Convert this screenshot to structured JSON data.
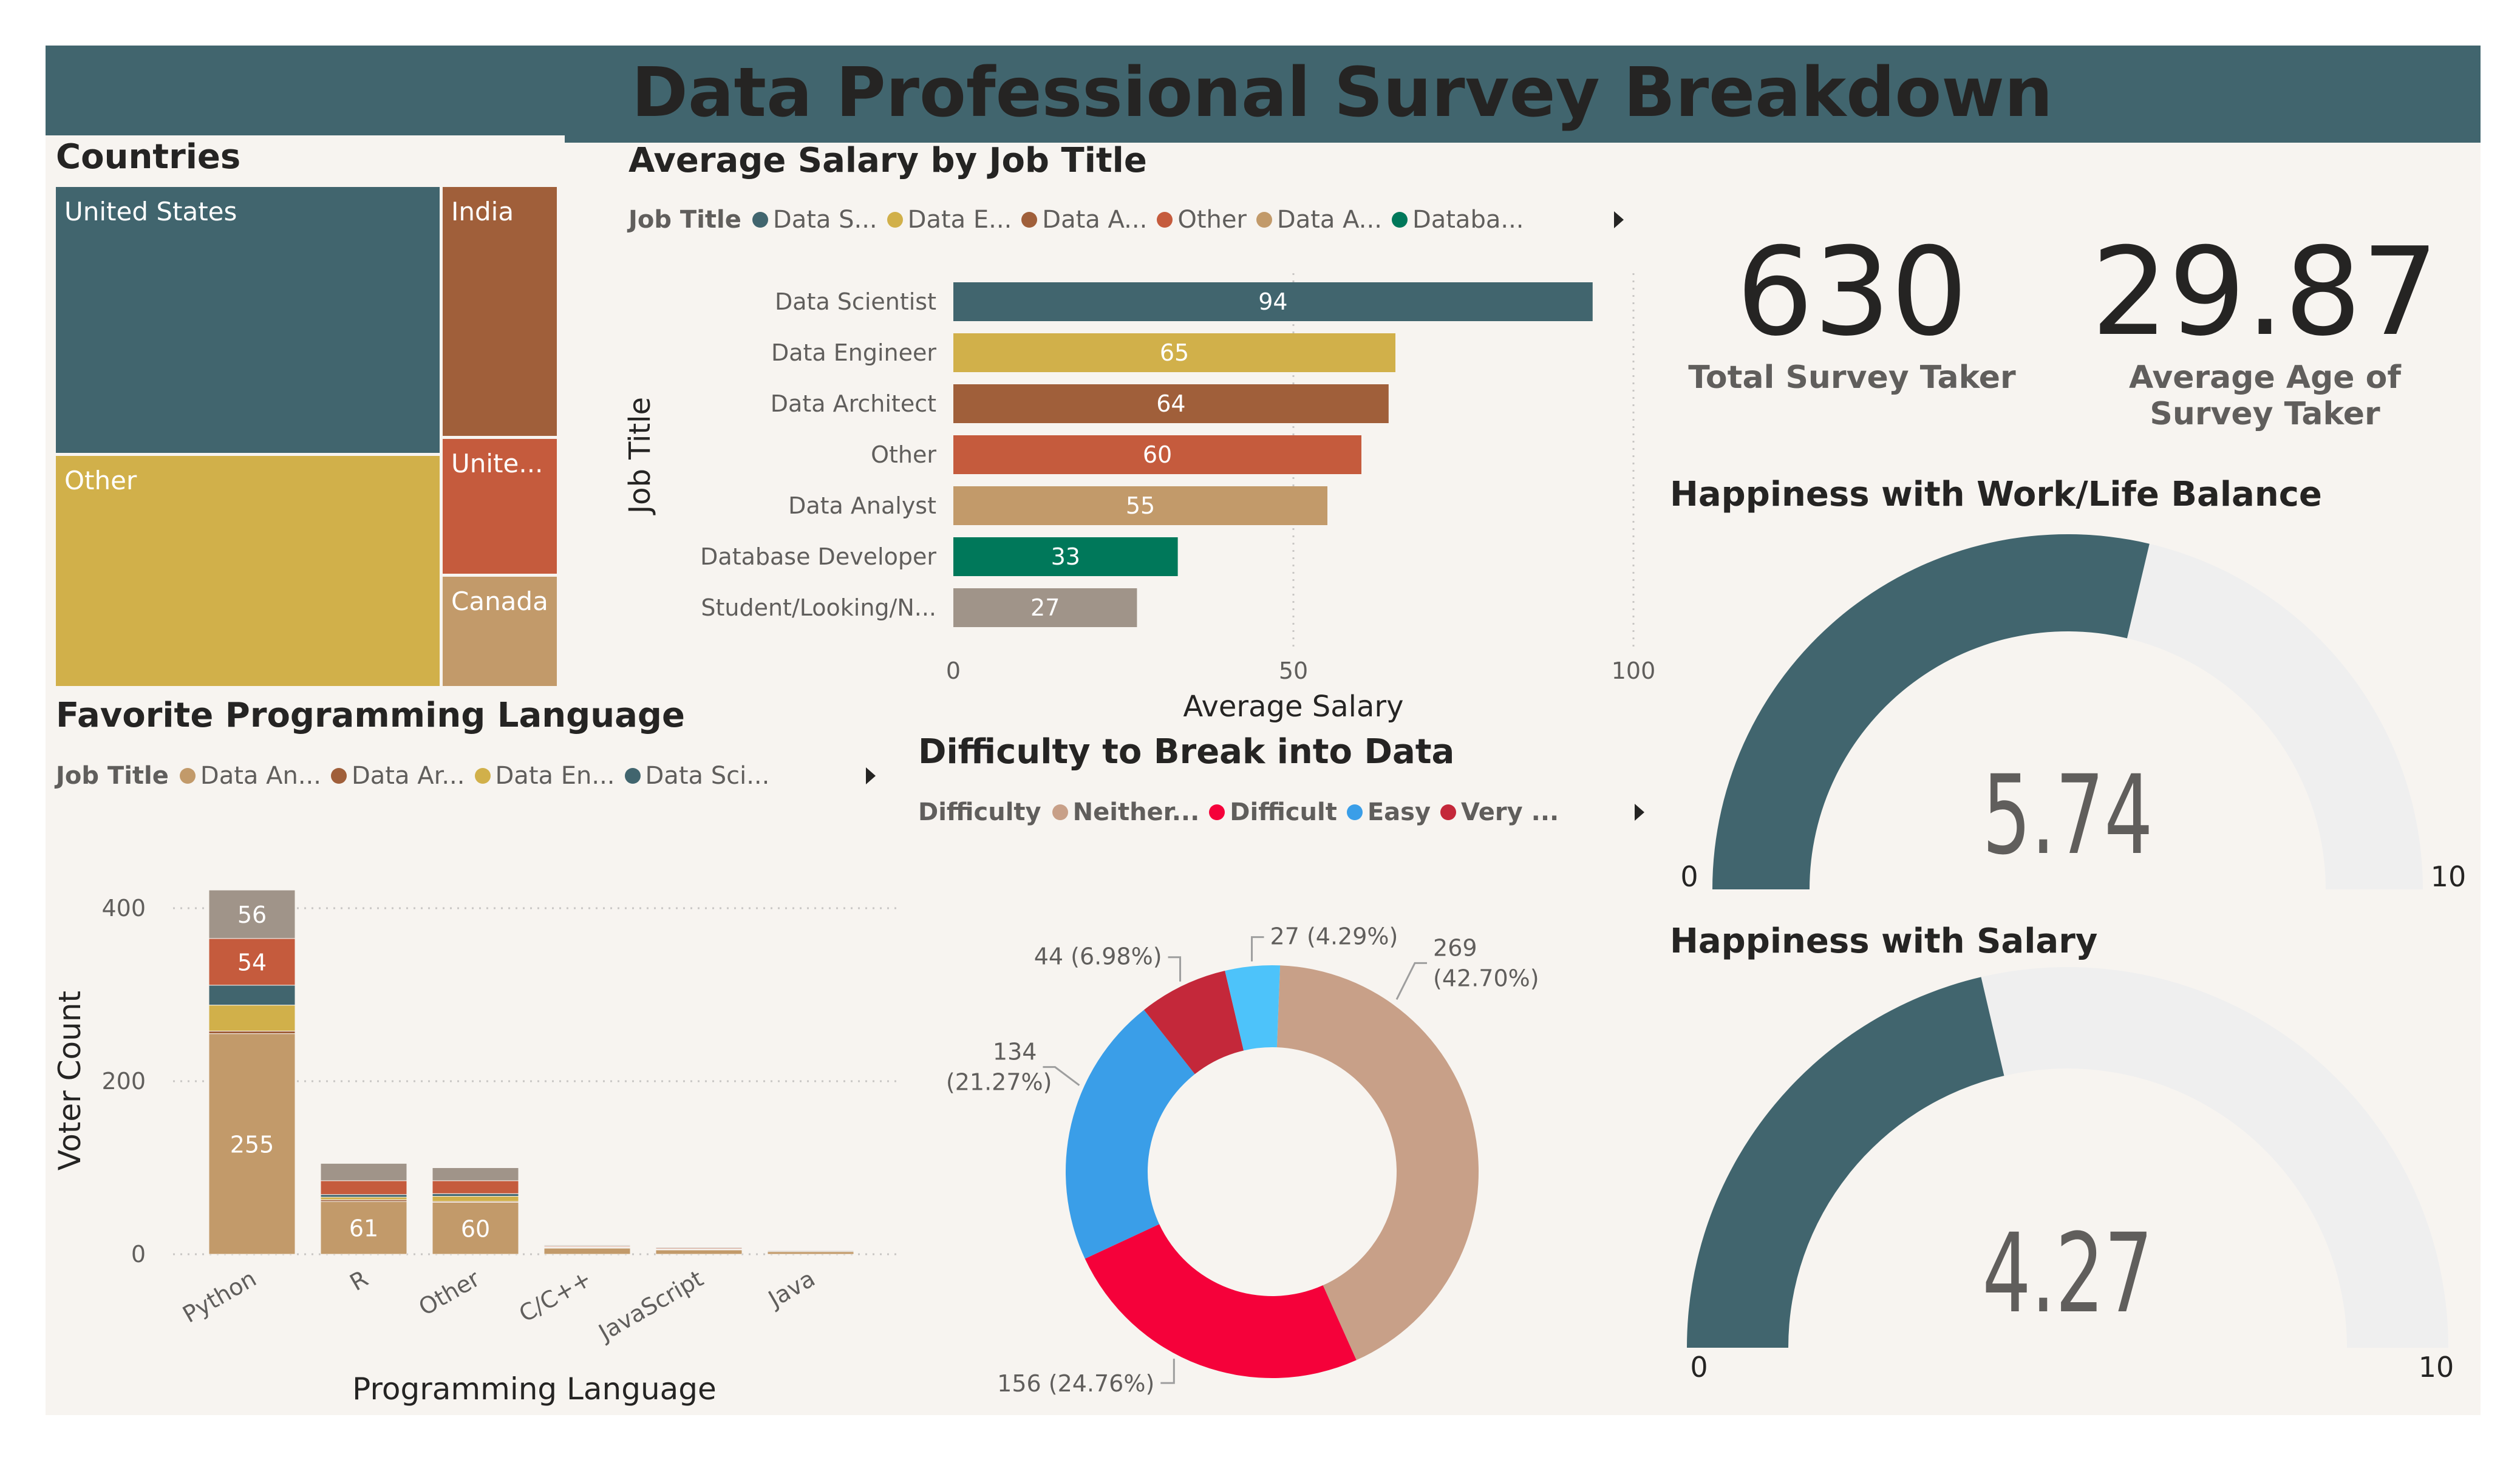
{
  "page": {
    "title": "Data Professional Survey Breakdown",
    "colors": {
      "header": "#41656E",
      "panel": "#F7F4F0",
      "text": "#252423",
      "muted": "#605E5C",
      "gauge_bg": "#EFEFEF"
    }
  },
  "treemap": {
    "title": "Countries",
    "tiles": [
      {
        "label": "United States",
        "color": "#41656E"
      },
      {
        "label": "Other",
        "color": "#D1B04A"
      },
      {
        "label": "India",
        "color": "#A05F3A"
      },
      {
        "label": "Unite...",
        "color": "#C55B3D"
      },
      {
        "label": "Canada",
        "color": "#C29A6A"
      }
    ]
  },
  "salary_chart": {
    "title": "Average Salary by Job Title",
    "legend_title": "Job Title",
    "legend": [
      {
        "label": "Data S...",
        "color": "#41656E"
      },
      {
        "label": "Data E...",
        "color": "#D1B04A"
      },
      {
        "label": "Data A...",
        "color": "#A05F3A"
      },
      {
        "label": "Other",
        "color": "#C55B3D"
      },
      {
        "label": "Data A...",
        "color": "#C29A6A"
      },
      {
        "label": "Databa...",
        "color": "#00785A"
      }
    ]
  },
  "kpis": [
    {
      "value": "630",
      "label": "Total Survey Taker"
    },
    {
      "value": "29.87",
      "label_line1": "Average Age of",
      "label_line2": "Survey Taker"
    }
  ],
  "gauges": [
    {
      "title": "Happiness with Work/Life Balance",
      "value": 5.74,
      "value_text": "5.74",
      "min": 0,
      "max": 10,
      "min_label": "0",
      "max_label": "10"
    },
    {
      "title": "Happiness with Salary",
      "value": 4.27,
      "value_text": "4.27",
      "min": 0,
      "max": 10,
      "min_label": "0",
      "max_label": "10"
    }
  ],
  "language_chart": {
    "title": "Favorite Programming Language",
    "legend_title": "Job Title",
    "legend": [
      {
        "label": "Data An...",
        "color": "#C29A6A"
      },
      {
        "label": "Data Ar...",
        "color": "#A05F3A"
      },
      {
        "label": "Data En...",
        "color": "#D1B04A"
      },
      {
        "label": "Data Sci...",
        "color": "#41656E"
      }
    ]
  },
  "donut_chart": {
    "title": "Difficulty to Break into Data",
    "legend_title": "Difficulty",
    "legend": [
      {
        "label": "Neither...",
        "color": "#C8A088"
      },
      {
        "label": "Difficult",
        "color": "#F5013A"
      },
      {
        "label": "Easy",
        "color": "#3A9EE8"
      },
      {
        "label": "Very ...",
        "color": "#C4283A"
      }
    ]
  },
  "chart_data": [
    {
      "type": "bar",
      "orientation": "horizontal",
      "title": "Average Salary by Job Title",
      "categories": [
        "Data Scientist",
        "Data Engineer",
        "Data Architect",
        "Other",
        "Data Analyst",
        "Database Developer",
        "Student/Looking/N..."
      ],
      "values": [
        94,
        65,
        64,
        60,
        55,
        33,
        27
      ],
      "colors": [
        "#41656E",
        "#D1B04A",
        "#A05F3A",
        "#C55B3D",
        "#C29A6A",
        "#00785A",
        "#A09489"
      ],
      "xlabel": "Average Salary",
      "ylabel": "Job Title",
      "xlim": [
        0,
        100
      ],
      "xticks": [
        0,
        50,
        100
      ],
      "grid": true
    },
    {
      "type": "bar",
      "stacked": true,
      "title": "Favorite Programming Language",
      "categories": [
        "Python",
        "R",
        "Other",
        "C/C++",
        "JavaScript",
        "Java"
      ],
      "series": [
        {
          "name": "Data An...",
          "color": "#C29A6A",
          "values": [
            255,
            61,
            60,
            7,
            5,
            3
          ]
        },
        {
          "name": "Data Ar...",
          "color": "#A05F3A",
          "values": [
            3,
            2,
            1,
            0.5,
            0.5,
            0
          ]
        },
        {
          "name": "Data En...",
          "color": "#D1B04A",
          "values": [
            30,
            3,
            6,
            0.5,
            0.5,
            0
          ]
        },
        {
          "name": "Data Sci...",
          "color": "#41656E",
          "values": [
            23,
            3,
            3,
            0.5,
            0,
            0
          ]
        },
        {
          "color": "#C55B3D",
          "values": [
            54,
            16,
            15,
            1,
            1,
            0
          ]
        },
        {
          "color": "#A09489",
          "values": [
            56,
            20,
            15,
            1,
            1,
            1
          ]
        }
      ],
      "data_labels": [
        {
          "category": "Python",
          "series": 0,
          "text": "255"
        },
        {
          "category": "Python",
          "series": 4,
          "text": "54"
        },
        {
          "category": "Python",
          "series": 5,
          "text": "56"
        },
        {
          "category": "R",
          "series": 0,
          "text": "61"
        },
        {
          "category": "Other",
          "series": 0,
          "text": "60"
        }
      ],
      "xlabel": "Programming Language",
      "ylabel": "Voter Count",
      "ylim": [
        0,
        440
      ],
      "yticks": [
        0,
        200,
        400
      ],
      "grid": true
    },
    {
      "type": "pie",
      "donut": true,
      "title": "Difficulty to Break into Data",
      "slices": [
        {
          "label": "Neither...",
          "value": 269,
          "text": "269",
          "pct_text": "(42.70%)",
          "color": "#C8A088"
        },
        {
          "label": "Difficult",
          "value": 156,
          "text": "156 (24.76%)",
          "color": "#F5013A"
        },
        {
          "label": "Easy",
          "value": 134,
          "text": "134",
          "pct_text": "(21.27%)",
          "color": "#3A9EE8"
        },
        {
          "label": "Very ...",
          "value": 44,
          "text": "44 (6.98%)",
          "color": "#C4283A"
        },
        {
          "value": 27,
          "text": "27 (4.29%)",
          "color": "#4DC3FA"
        }
      ]
    },
    {
      "type": "treemap",
      "title": "Countries",
      "labels": [
        "United States",
        "Other",
        "India",
        "Unite...",
        "Canada"
      ],
      "values": [
        261,
        216,
        97,
        50,
        44
      ]
    }
  ]
}
